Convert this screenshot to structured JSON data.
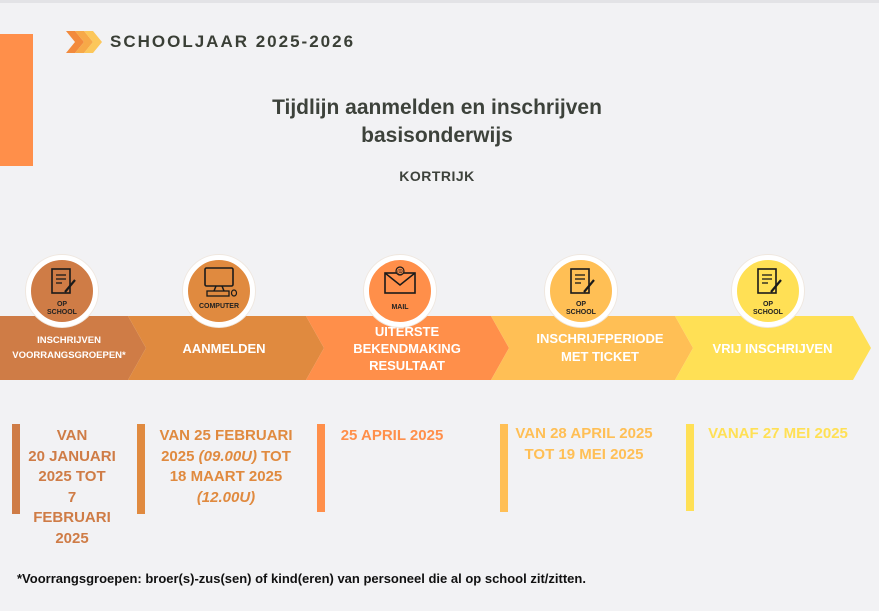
{
  "header": {
    "school_year": "SCHOOLJAAR 2025-2026",
    "title_line1": "Tijdlijn aanmelden en inschrijven",
    "title_line2": "basisonderwijs",
    "subtitle": "KORTRIJK"
  },
  "colors": {
    "accent": "#ff8f4a",
    "step1": "#cf7c46",
    "step2": "#e08a3f",
    "step3": "#ff8f4a",
    "step4": "#ffbf55",
    "step5": "#ffe055",
    "title_text": "#3d423b"
  },
  "steps": [
    {
      "icon": "document-pen-icon",
      "icon_label_1": "OP",
      "icon_label_2": "SCHOOL",
      "label_1": "INSCHRIJVEN",
      "label_2": "VOORRANGSGROEPEN*",
      "date_lines": [
        "VAN",
        "20 JANUARI",
        "2025 TOT",
        "7 FEBRUARI",
        "2025"
      ]
    },
    {
      "icon": "computer-icon",
      "icon_label_1": "COMPUTER",
      "label_1": "AANMELDEN",
      "date_1": "VAN 25 FEBRUARI",
      "date_2a": "2025 ",
      "date_2b": "(09.00U)",
      "date_2c": " TOT",
      "date_3": "18 MAART 2025",
      "date_4": "(12.00U)"
    },
    {
      "icon": "mail-icon",
      "icon_label_1": "MAIL",
      "label_1": "UITERSTE",
      "label_2": "BEKENDMAKING",
      "label_3": "RESULTAAT",
      "date_1": "25 APRIL 2025"
    },
    {
      "icon": "document-pen-icon",
      "icon_label_1": "OP",
      "icon_label_2": "SCHOOL",
      "label_1": "INSCHRIJFPERIODE",
      "label_2": "MET TICKET",
      "date_1": "VAN 28 APRIL 2025",
      "date_2": "TOT 19 MEI 2025"
    },
    {
      "icon": "document-pen-icon",
      "icon_label_1": "OP",
      "icon_label_2": "SCHOOL",
      "label_1": "VRIJ INSCHRIJVEN",
      "date_1": "VANAF 27 MEI 2025"
    }
  ],
  "footnote": "*Voorrangsgroepen: broer(s)-zus(sen) of kind(eren) van personeel die al op school zit/zitten."
}
